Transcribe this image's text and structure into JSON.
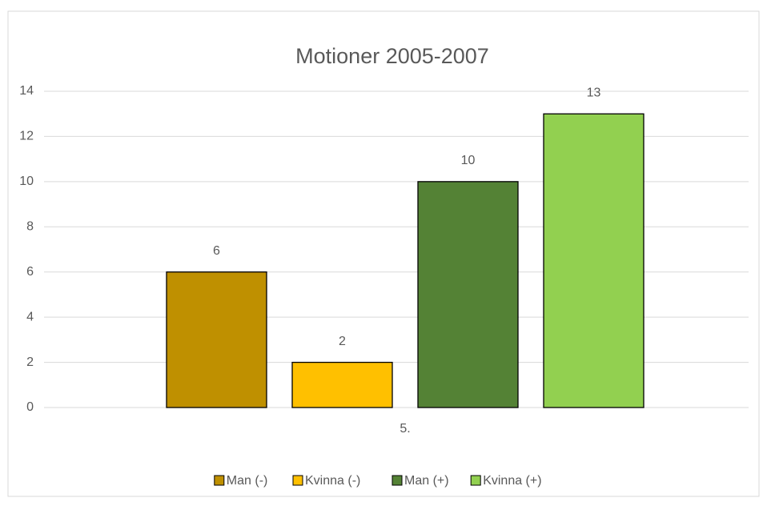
{
  "chart_data": {
    "type": "bar",
    "title": "Motioner 2005-2007",
    "categories": [
      "5."
    ],
    "series": [
      {
        "name": "Man (-)",
        "color": "#bf9000",
        "values": [
          6
        ]
      },
      {
        "name": "Kvinna (-)",
        "color": "#ffc000",
        "values": [
          2
        ]
      },
      {
        "name": "Man (+)",
        "color": "#548235",
        "values": [
          10
        ]
      },
      {
        "name": "Kvinna (+)",
        "color": "#92d050",
        "values": [
          13
        ]
      }
    ],
    "ylim": [
      0,
      14
    ],
    "yticks": [
      0,
      2,
      4,
      6,
      8,
      10,
      12,
      14
    ],
    "grid": true,
    "legend": "bottom"
  }
}
